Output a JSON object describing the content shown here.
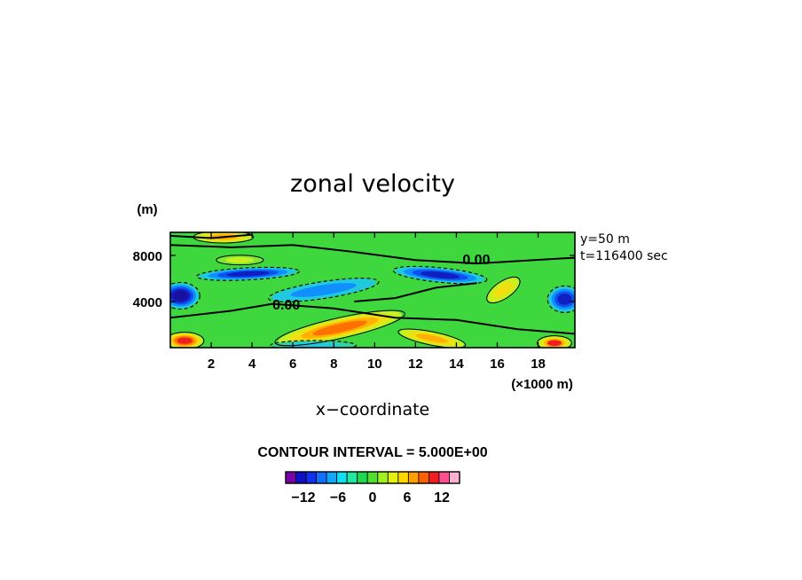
{
  "chart_data": {
    "type": "heatmap",
    "title": "zonal velocity",
    "xlabel": "x−coordinate",
    "x_unit": "(×1000 m)",
    "y_unit": "(m)",
    "xlim": [
      0,
      19.8
    ],
    "ylim": [
      0,
      10000
    ],
    "x_ticks": [
      2,
      4,
      6,
      8,
      10,
      12,
      14,
      16,
      18
    ],
    "y_ticks": [
      4000,
      8000
    ],
    "info_lines": [
      "y=50 m",
      "t=116400 sec"
    ],
    "contour_interval_text": "CONTOUR INTERVAL = 5.000E+00",
    "zero_contour_labels": [
      "0.00",
      "0.00"
    ],
    "colorbar": {
      "ticks": [
        "−12",
        "−6",
        "0",
        "6",
        "12"
      ],
      "colors": [
        "#7a00aa",
        "#1010c8",
        "#1030f0",
        "#1070ff",
        "#10a8ff",
        "#10e0f0",
        "#20e8a0",
        "#20d850",
        "#50e030",
        "#a0f020",
        "#e0f010",
        "#ffd800",
        "#ffa000",
        "#ff6000",
        "#f02020",
        "#ff5090",
        "#ffb0d0"
      ]
    },
    "features": [
      {
        "kind": "positive",
        "x": 8.3,
        "y": 1700,
        "sx": 3.1,
        "sy": 850,
        "rot": -0.22,
        "amp": 7
      },
      {
        "kind": "positive",
        "x": 12.8,
        "y": 800,
        "sx": 1.6,
        "sy": 550,
        "rot": 0.2,
        "amp": 5
      },
      {
        "kind": "positive",
        "x": 2.6,
        "y": 9600,
        "sx": 1.4,
        "sy": 500,
        "rot": 0.0,
        "amp": 6
      },
      {
        "kind": "positive",
        "x": 0.7,
        "y": 600,
        "sx": 0.9,
        "sy": 700,
        "rot": 0.0,
        "amp": 9
      },
      {
        "kind": "positive",
        "x": 18.8,
        "y": 400,
        "sx": 0.8,
        "sy": 600,
        "rot": 0.0,
        "amp": 8
      },
      {
        "kind": "positive",
        "x": 16.3,
        "y": 5000,
        "sx": 0.9,
        "sy": 700,
        "rot": -0.6,
        "amp": 4
      },
      {
        "kind": "positive",
        "x": 3.4,
        "y": 7600,
        "sx": 1.1,
        "sy": 400,
        "rot": 0.0,
        "amp": 3
      },
      {
        "kind": "negative",
        "x": 0.5,
        "y": 4500,
        "sx": 0.9,
        "sy": 1100,
        "rot": 0.0,
        "amp": -9
      },
      {
        "kind": "negative",
        "x": 19.3,
        "y": 4200,
        "sx": 0.8,
        "sy": 1100,
        "rot": 0.0,
        "amp": -7
      },
      {
        "kind": "negative",
        "x": 3.8,
        "y": 6400,
        "sx": 2.4,
        "sy": 500,
        "rot": -0.05,
        "amp": -7
      },
      {
        "kind": "negative",
        "x": 13.2,
        "y": 6300,
        "sx": 2.2,
        "sy": 600,
        "rot": 0.1,
        "amp": -7
      },
      {
        "kind": "negative",
        "x": 7.5,
        "y": 5000,
        "sx": 2.6,
        "sy": 700,
        "rot": -0.15,
        "amp": -4
      },
      {
        "kind": "negative",
        "x": 7.0,
        "y": 200,
        "sx": 2.0,
        "sy": 400,
        "rot": 0.0,
        "amp": -3
      }
    ]
  }
}
